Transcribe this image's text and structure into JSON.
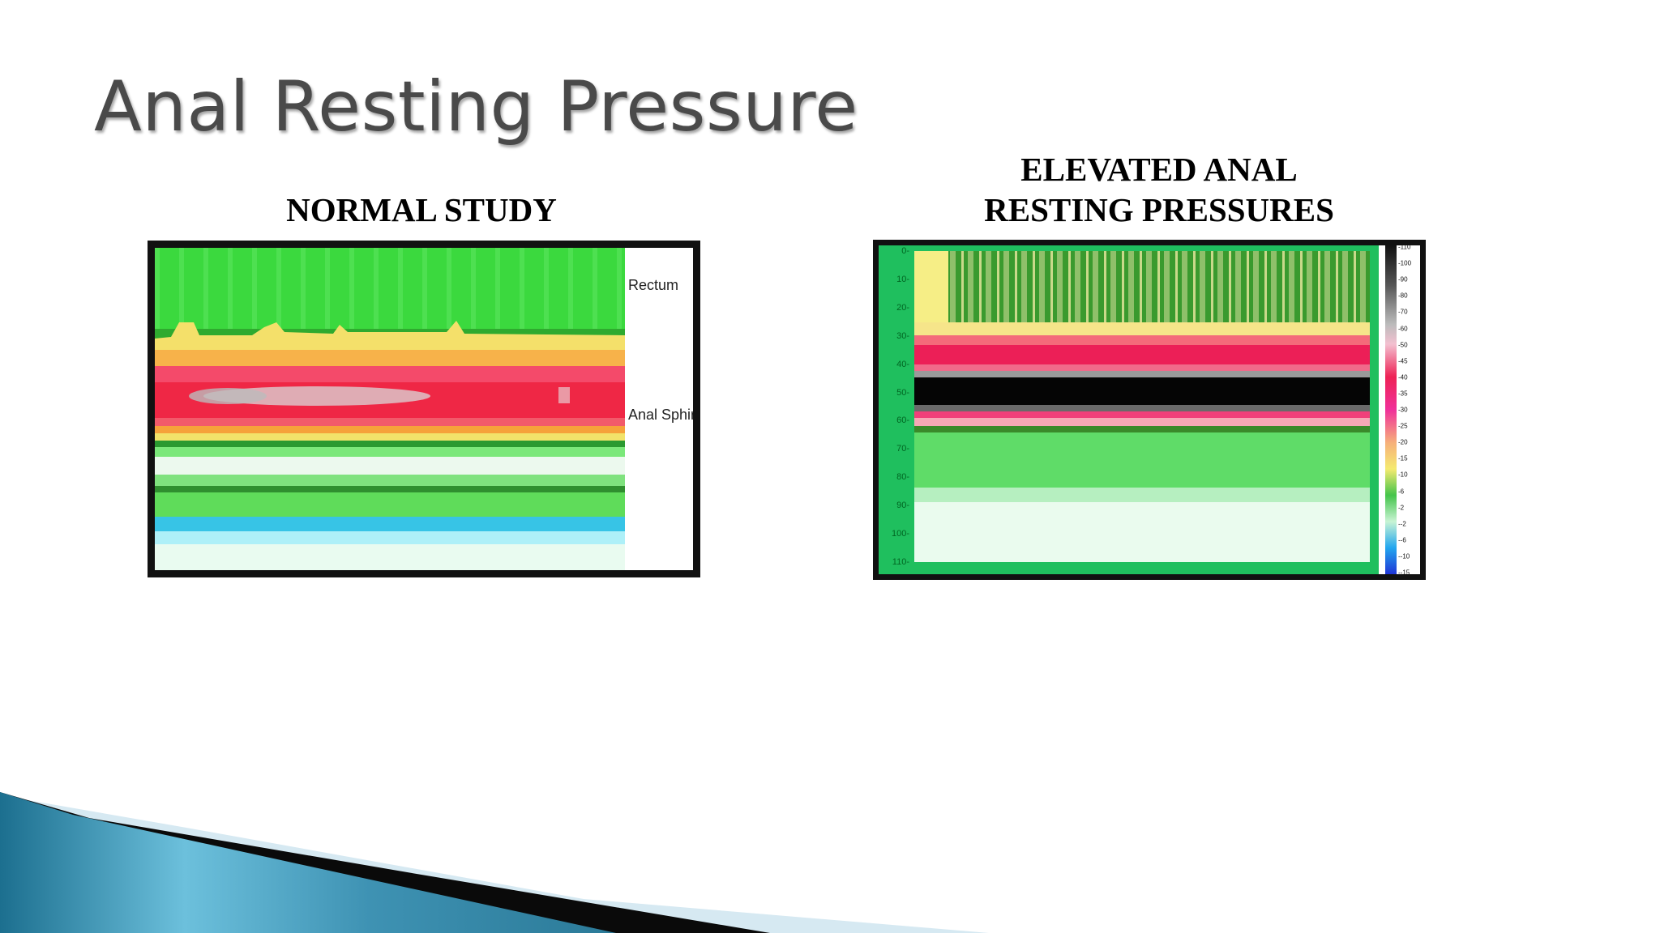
{
  "slide": {
    "title": "Anal Resting Pressure"
  },
  "normal_study": {
    "caption": "NORMAL STUDY",
    "labels": {
      "rectum": "Rectum",
      "sphincter": "Anal Sphir"
    }
  },
  "elevated": {
    "caption_line1": "ELEVATED ANAL",
    "caption_line2": "RESTING PRESSURES",
    "y_ticks": [
      "0",
      "10",
      "20",
      "30",
      "40",
      "50",
      "60",
      "70",
      "80",
      "90",
      "100",
      "110"
    ],
    "scale_ticks": [
      "110",
      "100",
      "90",
      "80",
      "70",
      "60",
      "50",
      "45",
      "40",
      "35",
      "30",
      "25",
      "20",
      "15",
      "10",
      "6",
      "2",
      "-2",
      "-6",
      "-10",
      "-15"
    ]
  }
}
